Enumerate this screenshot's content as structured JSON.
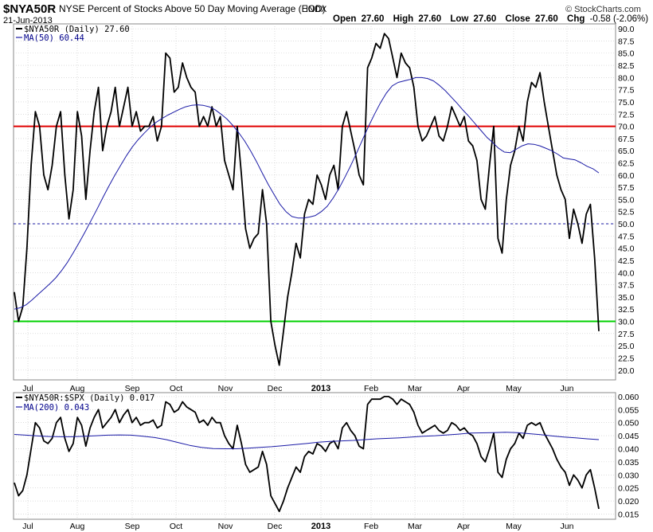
{
  "header": {
    "symbol": "$NYA50R",
    "description": "NYSE Percent of Stocks Above 50 Day Moving Average (EOD)",
    "exchange": "INDX",
    "date": "21-Jun-2013",
    "open_label": "Open",
    "open_value": "27.60",
    "high_label": "High",
    "high_value": "27.60",
    "low_label": "Low",
    "low_value": "27.60",
    "close_label": "Close",
    "close_value": "27.60",
    "chg_label": "Chg",
    "chg_value": "-0.58 (-2.06%)",
    "chg_arrow": "▼",
    "brand": "© StockCharts.com"
  },
  "months": [
    "Jul",
    "Aug",
    "Sep",
    "Oct",
    "Nov",
    "Dec",
    "2013",
    "Feb",
    "Mar",
    "Apr",
    "May",
    "Jun"
  ],
  "colors": {
    "price": "#000000",
    "ma": "#1a1aa6",
    "ref_high": "#e00000",
    "ref_low": "#00d000",
    "ref_mid": "#1a1aa6",
    "grid": "#c8c8c8"
  },
  "chart_data": [
    {
      "type": "line",
      "legend": [
        "$NYA50R (Daily) 27.60",
        "MA(50) 60.44"
      ],
      "ylim": [
        18,
        91
      ],
      "yticks": [
        "90.0",
        "87.5",
        "85.0",
        "82.5",
        "80.0",
        "77.5",
        "75.0",
        "72.5",
        "70.0",
        "67.5",
        "65.0",
        "62.5",
        "60.0",
        "57.5",
        "55.0",
        "52.5",
        "50.0",
        "47.5",
        "45.0",
        "42.5",
        "40.0",
        "37.5",
        "35.0",
        "32.5",
        "30.0",
        "27.5",
        "25.0",
        "22.5",
        "20.0"
      ],
      "reference_lines": [
        {
          "value": 70,
          "color": "#e00000",
          "style": "solid"
        },
        {
          "value": 50,
          "color": "#1a1aa6",
          "style": "dashed"
        },
        {
          "value": 30,
          "color": "#00d000",
          "style": "solid"
        }
      ],
      "series": [
        {
          "name": "$NYA50R (Daily)",
          "last": "27.60",
          "values": [
            36,
            30,
            33,
            45,
            62,
            73,
            70,
            60,
            57,
            62,
            70,
            73,
            60,
            51,
            57,
            73,
            68,
            55,
            65,
            73,
            78,
            65,
            70,
            73,
            78,
            70,
            74,
            78,
            70,
            73,
            69,
            70,
            70,
            72,
            67,
            70,
            85,
            84,
            77,
            78,
            83,
            80,
            78,
            77,
            70,
            72,
            70,
            74,
            70,
            72,
            63,
            60,
            57,
            70,
            60,
            49,
            45,
            47,
            48,
            57,
            50,
            30,
            25,
            21,
            28,
            35,
            40,
            46,
            43,
            52,
            55,
            54,
            60,
            58,
            55,
            60,
            62,
            57,
            70,
            73,
            69,
            65,
            60,
            58,
            82,
            84,
            87,
            86,
            89,
            88,
            84,
            80,
            85,
            83,
            82,
            78,
            70,
            67,
            68,
            70,
            72,
            68,
            67,
            70,
            74,
            72,
            70,
            72,
            67,
            66,
            63,
            55,
            53,
            62,
            70,
            47,
            44,
            55,
            62,
            65,
            70,
            67,
            75,
            79,
            78,
            81,
            75,
            70,
            65,
            60,
            57,
            55,
            47,
            53,
            50,
            46,
            52,
            54,
            43,
            28
          ]
        },
        {
          "name": "MA(50)",
          "last": "60.44",
          "values": [
            32.5,
            32.8,
            33.4,
            34.4,
            35.5,
            36.6,
            37.7,
            38.9,
            40.4,
            42.1,
            44.1,
            46.2,
            48.4,
            50.7,
            53,
            55.4,
            57.7,
            59.9,
            62,
            64,
            65.8,
            67.3,
            68.6,
            69.8,
            70.8,
            71.6,
            72.3,
            72.9,
            73.5,
            74,
            74.3,
            74.4,
            74.3,
            74,
            73.4,
            72.5,
            71.5,
            70.2,
            68.7,
            67,
            65,
            62.8,
            60.4,
            58.1,
            56,
            54,
            52.5,
            51.5,
            51.2,
            51.2,
            51.4,
            51.7,
            52.5,
            53.6,
            55.3,
            57.3,
            59.6,
            62,
            64.6,
            67.3,
            70,
            72.5,
            74.8,
            76.8,
            78.3,
            79,
            79.3,
            79.6,
            80,
            80,
            79.8,
            79.3,
            78.4,
            77.3,
            76,
            74.7,
            73.3,
            72,
            70.6,
            69.2,
            67.8,
            66.7,
            65.5,
            64.7,
            64.6,
            65.3,
            66,
            66.4,
            66.3,
            66,
            65.5,
            65,
            64.3,
            63.5,
            63.3,
            63.1,
            62.5,
            61.8,
            61.3,
            60.44
          ]
        }
      ]
    },
    {
      "type": "line",
      "legend": [
        "$NYA50R:$SPX (Daily) 0.017",
        "MA(200) 0.043"
      ],
      "ylim": [
        0.013,
        0.0615
      ],
      "yticks": [
        "0.060",
        "0.055",
        "0.050",
        "0.045",
        "0.040",
        "0.035",
        "0.030",
        "0.025",
        "0.020",
        "0.015"
      ],
      "series": [
        {
          "name": "$NYA50R:$SPX (Daily)",
          "last": "0.017",
          "values": [
            0.027,
            0.022,
            0.024,
            0.03,
            0.04,
            0.05,
            0.048,
            0.043,
            0.042,
            0.044,
            0.05,
            0.052,
            0.044,
            0.039,
            0.042,
            0.052,
            0.049,
            0.041,
            0.048,
            0.052,
            0.055,
            0.048,
            0.05,
            0.052,
            0.055,
            0.05,
            0.053,
            0.055,
            0.05,
            0.052,
            0.049,
            0.05,
            0.05,
            0.051,
            0.048,
            0.049,
            0.058,
            0.057,
            0.054,
            0.055,
            0.058,
            0.056,
            0.055,
            0.054,
            0.05,
            0.051,
            0.049,
            0.052,
            0.05,
            0.05,
            0.045,
            0.042,
            0.04,
            0.049,
            0.042,
            0.034,
            0.031,
            0.032,
            0.033,
            0.039,
            0.034,
            0.022,
            0.019,
            0.016,
            0.02,
            0.025,
            0.029,
            0.033,
            0.031,
            0.037,
            0.039,
            0.038,
            0.042,
            0.041,
            0.039,
            0.042,
            0.043,
            0.04,
            0.048,
            0.05,
            0.047,
            0.045,
            0.041,
            0.04,
            0.057,
            0.059,
            0.059,
            0.059,
            0.06,
            0.06,
            0.059,
            0.057,
            0.059,
            0.058,
            0.057,
            0.054,
            0.049,
            0.046,
            0.047,
            0.048,
            0.049,
            0.047,
            0.046,
            0.047,
            0.05,
            0.049,
            0.047,
            0.048,
            0.046,
            0.045,
            0.042,
            0.037,
            0.035,
            0.04,
            0.046,
            0.031,
            0.029,
            0.036,
            0.04,
            0.042,
            0.046,
            0.044,
            0.049,
            0.05,
            0.049,
            0.05,
            0.046,
            0.043,
            0.04,
            0.036,
            0.033,
            0.031,
            0.026,
            0.03,
            0.028,
            0.025,
            0.03,
            0.032,
            0.025,
            0.017
          ]
        },
        {
          "name": "MA(200)",
          "last": "0.043",
          "values": [
            0.0455,
            0.0452,
            0.0449,
            0.0447,
            0.0446,
            0.0446,
            0.0448,
            0.045,
            0.0452,
            0.0453,
            0.0452,
            0.0448,
            0.0443,
            0.0435,
            0.0424,
            0.0413,
            0.0405,
            0.0401,
            0.04,
            0.04,
            0.0402,
            0.0405,
            0.0408,
            0.0412,
            0.0416,
            0.042,
            0.0425,
            0.0428,
            0.043,
            0.0432,
            0.0435,
            0.0438,
            0.044,
            0.0442,
            0.0445,
            0.0448,
            0.045,
            0.0453,
            0.0456,
            0.046,
            0.0461,
            0.0462,
            0.0463,
            0.0462,
            0.0458,
            0.0454,
            0.0449,
            0.0445,
            0.0442,
            0.0438,
            0.0435
          ]
        }
      ]
    }
  ]
}
